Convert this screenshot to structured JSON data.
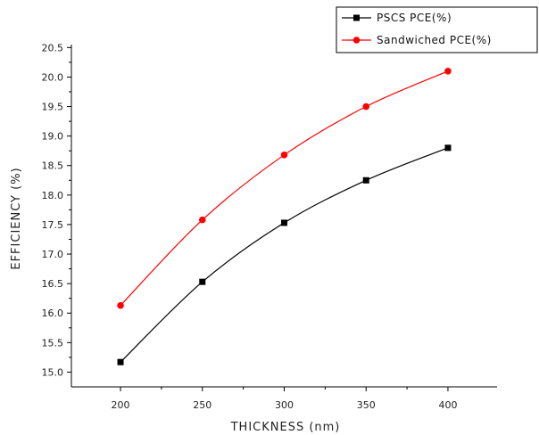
{
  "chart_data": {
    "type": "line",
    "xlabel": "THICKNESS (nm)",
    "ylabel": "EFFICIENCY (%)",
    "x": [
      200,
      250,
      300,
      350,
      400
    ],
    "xlim": [
      170,
      430
    ],
    "ylim": [
      14.75,
      20.55
    ],
    "xticks": [
      "200",
      "250",
      "300",
      "350",
      "400"
    ],
    "yticks": [
      "15.0",
      "15.5",
      "16.0",
      "16.5",
      "17.0",
      "17.5",
      "18.0",
      "18.5",
      "19.0",
      "19.5",
      "20.0",
      "20.5"
    ],
    "grid": false,
    "legend_position": "top-right",
    "series": [
      {
        "name": "PSCS PCE(%)",
        "values": [
          15.17,
          16.53,
          17.53,
          18.25,
          18.8
        ],
        "color": "#000000",
        "marker": "square"
      },
      {
        "name": "Sandwiched PCE(%)",
        "values": [
          16.13,
          17.58,
          18.68,
          19.5,
          20.1
        ],
        "color": "#ff0000",
        "marker": "circle"
      }
    ]
  }
}
